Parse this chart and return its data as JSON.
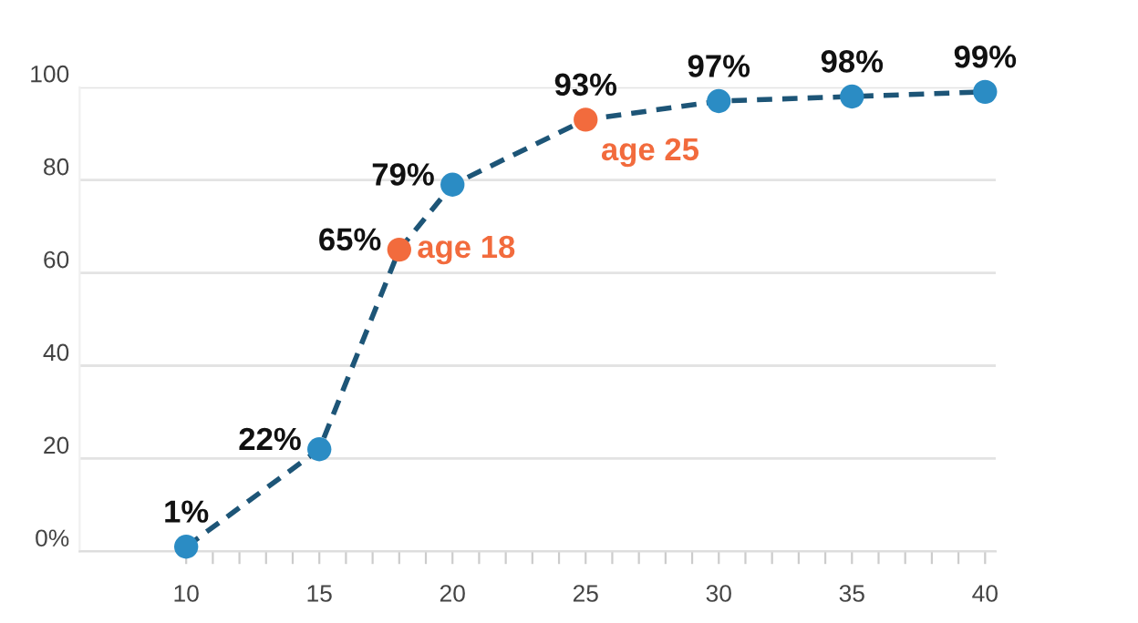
{
  "chart_data": {
    "type": "line",
    "line_style": "dashed",
    "marker": "circle",
    "grid": "y",
    "x": [
      10,
      15,
      18,
      20,
      25,
      30,
      35,
      40
    ],
    "series": [
      {
        "color": "#1d5577",
        "colors": [
          "#2b8cc4",
          "#2b8cc4",
          "#f26b3d",
          "#2b8cc4",
          "#f26b3d",
          "#2b8cc4",
          "#2b8cc4",
          "#2b8cc4"
        ],
        "values": [
          1,
          22,
          65,
          79,
          93,
          97,
          98,
          99
        ],
        "value_labels": [
          "1%",
          "22%",
          "65%",
          "79%",
          "93%",
          "97%",
          "98%",
          "99%"
        ]
      }
    ],
    "annotations": [
      {
        "text": "age 18",
        "x": 18,
        "y": 65
      },
      {
        "text": "age 25",
        "x": 25,
        "y": 93
      }
    ],
    "xlim": [
      6,
      40.4
    ],
    "ylim": [
      0,
      100
    ],
    "xticks": [
      10,
      {
        "value": 11,
        "label": null
      },
      {
        "value": 12,
        "label": null
      },
      {
        "value": 13,
        "label": null
      },
      {
        "value": 14,
        "label": null
      },
      15,
      {
        "value": 16,
        "label": null
      },
      {
        "value": 17,
        "label": null
      },
      {
        "value": 18,
        "label": null
      },
      {
        "value": 19,
        "label": null
      },
      20,
      {
        "value": 21,
        "label": null
      },
      {
        "value": 22,
        "label": null
      },
      {
        "value": 23,
        "label": null
      },
      {
        "value": 24,
        "label": null
      },
      25,
      {
        "value": 26,
        "label": null
      },
      {
        "value": 27,
        "label": null
      },
      {
        "value": 28,
        "label": null
      },
      {
        "value": 29,
        "label": null
      },
      30,
      {
        "value": 31,
        "label": null
      },
      {
        "value": 32,
        "label": null
      },
      {
        "value": 33,
        "label": null
      },
      {
        "value": 34,
        "label": null
      },
      35,
      {
        "value": 36,
        "label": null
      },
      {
        "value": 37,
        "label": null
      },
      {
        "value": 38,
        "label": null
      },
      {
        "value": 39,
        "label": null
      },
      40
    ],
    "yticks": [
      {
        "value": 0,
        "label": "0%"
      },
      20,
      40,
      60,
      80,
      100
    ]
  }
}
